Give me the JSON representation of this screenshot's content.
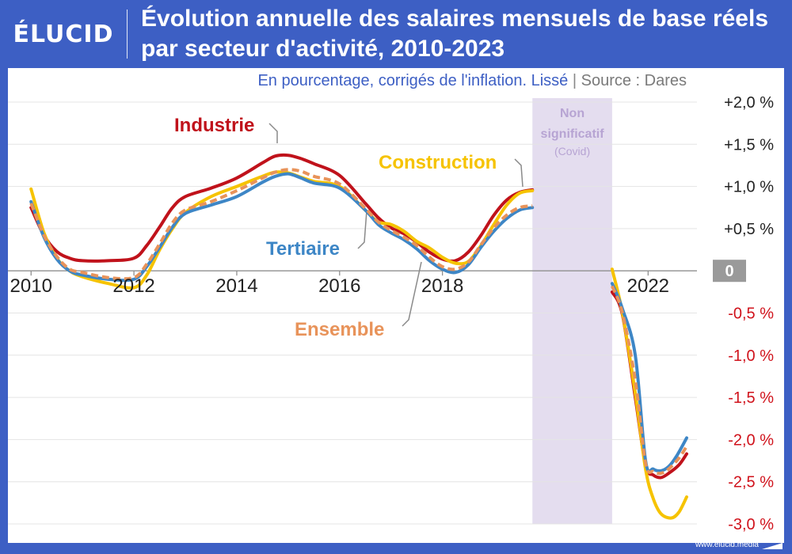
{
  "brand": {
    "logo_text": "ÉLUCID",
    "url": "www.elucid.media"
  },
  "header": {
    "title": "Évolution annuelle des salaires mensuels de base réels par secteur d'activité, 2010-2023"
  },
  "colors": {
    "header_bg": "#3d5fc4",
    "industrie": "#c0121b",
    "construction": "#f6c300",
    "tertiaire": "#3d86c6",
    "ensemble": "#e8935a",
    "covid_band": "#e4ddef",
    "covid_text": "#b7a4d3",
    "negative_tick": "#d0121b",
    "zero_box": "#9a9a9a"
  },
  "chart_data": {
    "type": "line",
    "title": "Évolution annuelle des salaires mensuels de base réels par secteur d'activité, 2010-2023",
    "subtitle": "En pourcentage, corrigés de l'inflation. Lissé",
    "source": "Source : Dares",
    "xlim": [
      2009.95,
      2022.95
    ],
    "ylim": [
      -3.0,
      2.0
    ],
    "x_ticks": [
      {
        "value": 2010,
        "label": "2010"
      },
      {
        "value": 2012,
        "label": "2012"
      },
      {
        "value": 2014,
        "label": "2014"
      },
      {
        "value": 2016,
        "label": "2016"
      },
      {
        "value": 2018,
        "label": "2018"
      },
      {
        "value": 2022,
        "label": "2022"
      }
    ],
    "y_ticks": [
      {
        "value": 2.0,
        "label": "+2,0 %"
      },
      {
        "value": 1.5,
        "label": "+1,5 %"
      },
      {
        "value": 1.0,
        "label": "+1,0 %"
      },
      {
        "value": 0.5,
        "label": "+0,5 %"
      },
      {
        "value": 0,
        "label": "0"
      },
      {
        "value": -0.5,
        "label": "-0,5 %"
      },
      {
        "value": -1.0,
        "label": "-1,0 %"
      },
      {
        "value": -1.5,
        "label": "-1,5 %"
      },
      {
        "value": -2.0,
        "label": "-2,0 %"
      },
      {
        "value": -2.5,
        "label": "-2,5 %"
      },
      {
        "value": -3.0,
        "label": "-3,0 %"
      }
    ],
    "grid": true,
    "covid_band": {
      "x_start": 2019.75,
      "x_end": 2021.3,
      "label_line1": "Non",
      "label_line2": "significatif",
      "label_line3": "(Covid)"
    },
    "series": [
      {
        "name": "Industrie",
        "style": "solid",
        "segments": [
          [
            [
              2010,
              0.75
            ],
            [
              2010.25,
              0.42
            ],
            [
              2010.5,
              0.23
            ],
            [
              2010.75,
              0.15
            ],
            [
              2011,
              0.12
            ],
            [
              2011.5,
              0.12
            ],
            [
              2012,
              0.15
            ],
            [
              2012.25,
              0.3
            ],
            [
              2012.5,
              0.52
            ],
            [
              2012.75,
              0.75
            ],
            [
              2013,
              0.88
            ],
            [
              2013.5,
              0.98
            ],
            [
              2014,
              1.1
            ],
            [
              2014.5,
              1.28
            ],
            [
              2014.75,
              1.36
            ],
            [
              2015,
              1.37
            ],
            [
              2015.25,
              1.33
            ],
            [
              2015.5,
              1.27
            ],
            [
              2016,
              1.13
            ],
            [
              2016.5,
              0.8
            ],
            [
              2016.75,
              0.63
            ],
            [
              2017,
              0.51
            ],
            [
              2017.25,
              0.44
            ],
            [
              2017.5,
              0.34
            ],
            [
              2017.75,
              0.22
            ],
            [
              2018,
              0.14
            ],
            [
              2018.25,
              0.12
            ],
            [
              2018.5,
              0.22
            ],
            [
              2018.75,
              0.42
            ],
            [
              2019,
              0.66
            ],
            [
              2019.25,
              0.84
            ],
            [
              2019.5,
              0.93
            ],
            [
              2019.75,
              0.96
            ]
          ],
          [
            [
              2021.3,
              -0.25
            ],
            [
              2021.5,
              -0.52
            ],
            [
              2021.75,
              -1.5
            ],
            [
              2021.95,
              -2.3
            ],
            [
              2022.1,
              -2.42
            ],
            [
              2022.25,
              -2.45
            ],
            [
              2022.4,
              -2.4
            ],
            [
              2022.6,
              -2.3
            ],
            [
              2022.75,
              -2.17
            ]
          ]
        ]
      },
      {
        "name": "Construction",
        "style": "solid",
        "segments": [
          [
            [
              2010,
              0.97
            ],
            [
              2010.25,
              0.45
            ],
            [
              2010.5,
              0.15
            ],
            [
              2010.75,
              0.0
            ],
            [
              2011,
              -0.07
            ],
            [
              2011.5,
              -0.15
            ],
            [
              2012,
              -0.2
            ],
            [
              2012.25,
              -0.05
            ],
            [
              2012.5,
              0.25
            ],
            [
              2012.75,
              0.5
            ],
            [
              2013,
              0.69
            ],
            [
              2013.5,
              0.88
            ],
            [
              2014,
              1.0
            ],
            [
              2014.5,
              1.12
            ],
            [
              2014.75,
              1.17
            ],
            [
              2015,
              1.16
            ],
            [
              2015.25,
              1.11
            ],
            [
              2015.5,
              1.06
            ],
            [
              2016,
              1.0
            ],
            [
              2016.5,
              0.72
            ],
            [
              2016.75,
              0.58
            ],
            [
              2017,
              0.55
            ],
            [
              2017.25,
              0.47
            ],
            [
              2017.5,
              0.35
            ],
            [
              2017.75,
              0.27
            ],
            [
              2018,
              0.16
            ],
            [
              2018.25,
              0.09
            ],
            [
              2018.5,
              0.11
            ],
            [
              2018.75,
              0.3
            ],
            [
              2019,
              0.55
            ],
            [
              2019.25,
              0.78
            ],
            [
              2019.5,
              0.92
            ],
            [
              2019.75,
              0.95
            ]
          ],
          [
            [
              2021.3,
              0.02
            ],
            [
              2021.5,
              -0.5
            ],
            [
              2021.75,
              -1.45
            ],
            [
              2021.95,
              -2.35
            ],
            [
              2022.1,
              -2.7
            ],
            [
              2022.25,
              -2.88
            ],
            [
              2022.45,
              -2.93
            ],
            [
              2022.6,
              -2.86
            ],
            [
              2022.75,
              -2.68
            ]
          ]
        ]
      },
      {
        "name": "Tertiaire",
        "style": "solid",
        "segments": [
          [
            [
              2010,
              0.82
            ],
            [
              2010.25,
              0.4
            ],
            [
              2010.5,
              0.14
            ],
            [
              2010.75,
              0.0
            ],
            [
              2011,
              -0.05
            ],
            [
              2011.5,
              -0.1
            ],
            [
              2012,
              -0.1
            ],
            [
              2012.25,
              0.05
            ],
            [
              2012.5,
              0.28
            ],
            [
              2012.75,
              0.52
            ],
            [
              2013,
              0.68
            ],
            [
              2013.5,
              0.78
            ],
            [
              2014,
              0.88
            ],
            [
              2014.5,
              1.05
            ],
            [
              2014.75,
              1.12
            ],
            [
              2015,
              1.15
            ],
            [
              2015.25,
              1.1
            ],
            [
              2015.5,
              1.04
            ],
            [
              2016,
              0.98
            ],
            [
              2016.5,
              0.72
            ],
            [
              2016.75,
              0.55
            ],
            [
              2017,
              0.45
            ],
            [
              2017.25,
              0.37
            ],
            [
              2017.5,
              0.26
            ],
            [
              2017.75,
              0.12
            ],
            [
              2018,
              0.02
            ],
            [
              2018.25,
              -0.02
            ],
            [
              2018.5,
              0.07
            ],
            [
              2018.75,
              0.28
            ],
            [
              2019,
              0.47
            ],
            [
              2019.25,
              0.62
            ],
            [
              2019.5,
              0.72
            ],
            [
              2019.75,
              0.75
            ]
          ],
          [
            [
              2021.3,
              -0.15
            ],
            [
              2021.5,
              -0.45
            ],
            [
              2021.75,
              -1.0
            ],
            [
              2021.95,
              -2.25
            ],
            [
              2022.1,
              -2.35
            ],
            [
              2022.25,
              -2.37
            ],
            [
              2022.4,
              -2.32
            ],
            [
              2022.55,
              -2.2
            ],
            [
              2022.75,
              -1.98
            ]
          ]
        ]
      },
      {
        "name": "Ensemble",
        "style": "dashed",
        "segments": [
          [
            [
              2010,
              0.8
            ],
            [
              2010.25,
              0.42
            ],
            [
              2010.5,
              0.17
            ],
            [
              2010.75,
              0.02
            ],
            [
              2011,
              -0.02
            ],
            [
              2011.5,
              -0.08
            ],
            [
              2012,
              -0.08
            ],
            [
              2012.25,
              0.08
            ],
            [
              2012.5,
              0.32
            ],
            [
              2012.75,
              0.57
            ],
            [
              2013,
              0.72
            ],
            [
              2013.5,
              0.82
            ],
            [
              2014,
              0.95
            ],
            [
              2014.5,
              1.1
            ],
            [
              2014.75,
              1.17
            ],
            [
              2015,
              1.2
            ],
            [
              2015.25,
              1.18
            ],
            [
              2015.5,
              1.12
            ],
            [
              2016,
              1.03
            ],
            [
              2016.5,
              0.74
            ],
            [
              2016.75,
              0.58
            ],
            [
              2017,
              0.48
            ],
            [
              2017.25,
              0.4
            ],
            [
              2017.5,
              0.3
            ],
            [
              2017.75,
              0.16
            ],
            [
              2018,
              0.05
            ],
            [
              2018.25,
              0.02
            ],
            [
              2018.5,
              0.1
            ],
            [
              2018.75,
              0.31
            ],
            [
              2019,
              0.51
            ],
            [
              2019.25,
              0.66
            ],
            [
              2019.5,
              0.75
            ],
            [
              2019.75,
              0.77
            ]
          ],
          [
            [
              2021.3,
              -0.18
            ],
            [
              2021.5,
              -0.5
            ],
            [
              2021.75,
              -1.3
            ],
            [
              2021.95,
              -2.28
            ],
            [
              2022.1,
              -2.38
            ],
            [
              2022.25,
              -2.4
            ],
            [
              2022.4,
              -2.35
            ],
            [
              2022.6,
              -2.22
            ],
            [
              2022.75,
              -2.08
            ]
          ]
        ]
      }
    ],
    "annotations": [
      {
        "text": "Industrie",
        "series": "Industrie"
      },
      {
        "text": "Construction",
        "series": "Construction"
      },
      {
        "text": "Tertiaire",
        "series": "Tertiaire"
      },
      {
        "text": "Ensemble",
        "series": "Ensemble"
      }
    ]
  }
}
